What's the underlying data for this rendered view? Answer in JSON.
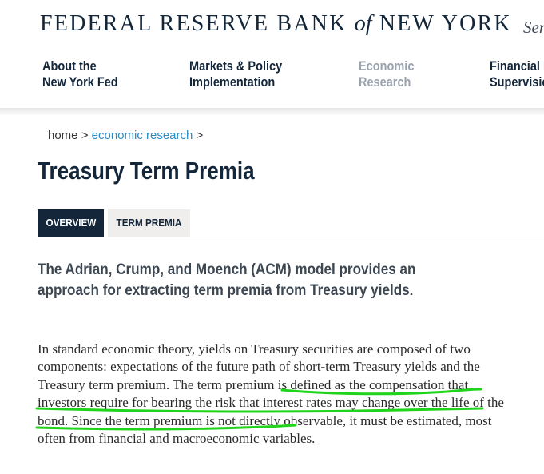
{
  "header": {
    "bank_name_part1": "FEDERAL RESERVE BANK",
    "bank_name_of": "of",
    "bank_name_part2": "NEW YORK",
    "tagline_partial": "Ser"
  },
  "nav": {
    "items": [
      {
        "line1": "About the",
        "line2": "New York Fed",
        "active": false
      },
      {
        "line1": "Markets & Policy",
        "line2": "Implementation",
        "active": false
      },
      {
        "line1": "Economic",
        "line2": "Research",
        "active": true
      },
      {
        "line1": "Financial I",
        "line2": "Supervisio",
        "active": false
      }
    ]
  },
  "breadcrumb": {
    "home": "home",
    "sep1": " > ",
    "economic_research": "economic research",
    "sep2": " >"
  },
  "page": {
    "title": "Treasury Term Premia"
  },
  "tabs": [
    {
      "label": "OVERVIEW",
      "selected": true
    },
    {
      "label": "TERM PREMIA",
      "selected": false
    }
  ],
  "content": {
    "intro": "The Adrian, Crump, and Moench (ACM) model provides an approach for extracting term premia from Treasury yields.",
    "body_before_highlight": "In standard economic theory, yields on Treasury securities are composed of two components: expectations of the future path of short-term Treasury yields and the Treasury term premium. ",
    "body_highlight": "The term premium is defined as the compensation that investors require for bearing the risk that interest rates may change over the life of the bond",
    "body_after_highlight": ". Since the term premium is not directly observable, it must be estimated, most often from financial and macroeconomic variables."
  },
  "colors": {
    "navy": "#13263a",
    "link_blue": "#2b8cc4",
    "nav_active_gray": "#9aa3ad",
    "tab_inactive_bg": "#efeeec",
    "annotation_green": "#1fd41a"
  }
}
